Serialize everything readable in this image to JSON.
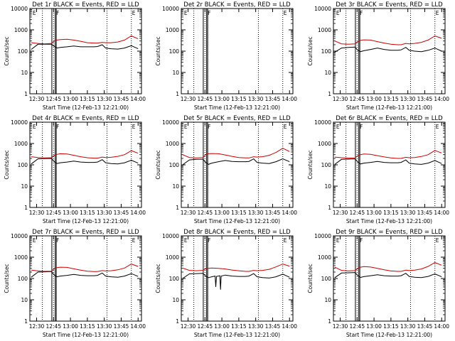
{
  "figure": {
    "background": "#ffffff",
    "event_color": "#000000",
    "lld_color": "#cc0000"
  },
  "chart_data": [
    {
      "type": "line",
      "title": "Det 1r BLACK = Events, RED = LLD",
      "xlabel": "Start Time (12-Feb-13 12:21:00)",
      "ylabel": "Counts/sec",
      "yscale": "log",
      "ylim": [
        1,
        10000
      ],
      "xlim": [
        12.4,
        14.05
      ],
      "x_tick_labels": [
        "12:30",
        "12:45",
        "13:00",
        "13:15",
        "13:30",
        "13:45",
        "14:00"
      ],
      "y_tick_labels": [
        "1",
        "10",
        "100",
        "1000",
        "10000"
      ],
      "flags": [
        "E",
        "F",
        "E"
      ],
      "series": [
        {
          "name": "Events",
          "x": [
            12.42,
            12.52,
            12.62,
            12.72,
            12.76,
            12.8,
            12.85,
            12.95,
            13.05,
            13.15,
            13.25,
            13.35,
            13.4,
            13.47,
            13.52,
            13.6,
            13.7,
            13.8,
            13.9,
            14.0
          ],
          "y": [
            120,
            210,
            210,
            210,
            170,
            140,
            150,
            160,
            175,
            160,
            160,
            160,
            165,
            200,
            140,
            130,
            125,
            140,
            180,
            130
          ]
        },
        {
          "name": "LLD",
          "x": [
            12.42,
            12.52,
            12.62,
            12.72,
            12.76,
            12.8,
            12.85,
            12.95,
            13.05,
            13.15,
            13.25,
            13.35,
            13.4,
            13.47,
            13.52,
            13.6,
            13.7,
            13.8,
            13.9,
            14.0
          ],
          "y": [
            250,
            230,
            220,
            230,
            300,
            330,
            350,
            360,
            330,
            290,
            250,
            240,
            240,
            260,
            250,
            250,
            270,
            330,
            520,
            380
          ]
        }
      ]
    },
    {
      "type": "line",
      "title": "Det 2r BLACK = Events, RED = LLD",
      "xlabel": "Start Time (12-Feb-13 12:21:00)",
      "ylabel": "Counts/sec",
      "yscale": "log",
      "ylim": [
        1,
        10000
      ],
      "xlim": [
        12.4,
        14.05
      ],
      "x_tick_labels": [
        "12:30",
        "12:45",
        "13:00",
        "13:15",
        "13:30",
        "13:45",
        "14:00"
      ],
      "y_tick_labels": [
        "1",
        "10",
        "100",
        "1000",
        "10000"
      ],
      "flags": [
        "E",
        "F",
        "E"
      ],
      "series": []
    },
    {
      "type": "line",
      "title": "Det 3r BLACK = Events, RED = LLD",
      "xlabel": "Start Time (12-Feb-13 12:21:00)",
      "ylabel": "Counts/sec",
      "yscale": "log",
      "ylim": [
        1,
        10000
      ],
      "xlim": [
        12.4,
        14.05
      ],
      "x_tick_labels": [
        "12:30",
        "12:45",
        "13:00",
        "13:15",
        "13:30",
        "13:45",
        "14:00"
      ],
      "y_tick_labels": [
        "1",
        "10",
        "100",
        "1000",
        "10000"
      ],
      "flags": [
        "E",
        "F",
        "E"
      ],
      "series": [
        {
          "name": "Events",
          "x": [
            12.42,
            12.52,
            12.62,
            12.72,
            12.76,
            12.8,
            12.85,
            12.95,
            13.05,
            13.15,
            13.25,
            13.35,
            13.4,
            13.47,
            13.52,
            13.6,
            13.7,
            13.8,
            13.9,
            14.0
          ],
          "y": [
            90,
            140,
            150,
            155,
            110,
            95,
            105,
            120,
            140,
            120,
            110,
            110,
            115,
            150,
            110,
            100,
            95,
            110,
            140,
            100
          ]
        },
        {
          "name": "LLD",
          "x": [
            12.42,
            12.52,
            12.62,
            12.72,
            12.76,
            12.8,
            12.85,
            12.95,
            13.05,
            13.15,
            13.25,
            13.35,
            13.4,
            13.47,
            13.52,
            13.6,
            13.7,
            13.8,
            13.9,
            14.0
          ],
          "y": [
            300,
            220,
            210,
            220,
            280,
            320,
            340,
            330,
            280,
            240,
            210,
            200,
            200,
            230,
            220,
            230,
            260,
            330,
            520,
            400
          ]
        }
      ]
    },
    {
      "type": "line",
      "title": "Det 4r BLACK = Events, RED = LLD",
      "xlabel": "Start Time (12-Feb-13 12:21:00)",
      "ylabel": "Counts/sec",
      "yscale": "log",
      "ylim": [
        1,
        10000
      ],
      "xlim": [
        12.4,
        14.05
      ],
      "x_tick_labels": [
        "12:30",
        "12:45",
        "13:00",
        "13:15",
        "13:30",
        "13:45",
        "14:00"
      ],
      "y_tick_labels": [
        "1",
        "10",
        "100",
        "1000",
        "10000"
      ],
      "flags": [
        "E",
        "F",
        "E"
      ],
      "series": [
        {
          "name": "Events",
          "x": [
            12.42,
            12.52,
            12.62,
            12.72,
            12.76,
            12.8,
            12.85,
            12.95,
            13.05,
            13.15,
            13.25,
            13.35,
            13.4,
            13.47,
            13.52,
            13.6,
            13.7,
            13.8,
            13.9,
            14.0
          ],
          "y": [
            110,
            190,
            195,
            200,
            140,
            115,
            125,
            135,
            150,
            135,
            130,
            130,
            135,
            175,
            125,
            115,
            110,
            125,
            165,
            120
          ]
        },
        {
          "name": "LLD",
          "x": [
            12.42,
            12.52,
            12.62,
            12.72,
            12.76,
            12.8,
            12.85,
            12.95,
            13.05,
            13.15,
            13.25,
            13.35,
            13.4,
            13.47,
            13.52,
            13.6,
            13.7,
            13.8,
            13.9,
            14.0
          ],
          "y": [
            240,
            220,
            210,
            215,
            280,
            310,
            330,
            320,
            280,
            240,
            215,
            205,
            205,
            230,
            220,
            225,
            250,
            300,
            460,
            350
          ]
        }
      ]
    },
    {
      "type": "line",
      "title": "Det 5r BLACK = Events, RED = LLD",
      "xlabel": "Start Time (12-Feb-13 12:21:00)",
      "ylabel": "Counts/sec",
      "yscale": "log",
      "ylim": [
        1,
        10000
      ],
      "xlim": [
        12.4,
        14.05
      ],
      "x_tick_labels": [
        "12:30",
        "12:45",
        "13:00",
        "13:15",
        "13:30",
        "13:45",
        "14:00"
      ],
      "y_tick_labels": [
        "1",
        "10",
        "100",
        "1000",
        "10000"
      ],
      "flags": [
        "E",
        "F",
        "E"
      ],
      "series": [
        {
          "name": "Events",
          "x": [
            12.42,
            12.52,
            12.62,
            12.72,
            12.76,
            12.8,
            12.85,
            12.95,
            13.05,
            13.15,
            13.25,
            13.35,
            13.4,
            13.47,
            13.52,
            13.6,
            13.7,
            13.8,
            13.9,
            14.0
          ],
          "y": [
            100,
            170,
            180,
            185,
            130,
            105,
            120,
            140,
            160,
            145,
            140,
            140,
            145,
            190,
            130,
            120,
            115,
            140,
            190,
            140
          ]
        },
        {
          "name": "LLD",
          "x": [
            12.42,
            12.52,
            12.62,
            12.72,
            12.76,
            12.8,
            12.85,
            12.95,
            13.05,
            13.15,
            13.25,
            13.35,
            13.4,
            13.47,
            13.52,
            13.6,
            13.7,
            13.8,
            13.9,
            14.0
          ],
          "y": [
            300,
            220,
            210,
            220,
            300,
            330,
            340,
            330,
            290,
            250,
            220,
            210,
            210,
            240,
            230,
            240,
            280,
            380,
            600,
            420
          ]
        }
      ]
    },
    {
      "type": "line",
      "title": "Det 6r BLACK = Events, RED = LLD",
      "xlabel": "Start Time (12-Feb-13 12:21:00)",
      "ylabel": "Counts/sec",
      "yscale": "log",
      "ylim": [
        1,
        10000
      ],
      "xlim": [
        12.4,
        14.05
      ],
      "x_tick_labels": [
        "12:30",
        "12:45",
        "13:00",
        "13:15",
        "13:30",
        "13:45",
        "14:00"
      ],
      "y_tick_labels": [
        "1",
        "10",
        "100",
        "1000",
        "10000"
      ],
      "flags": [
        "E",
        "F",
        "E"
      ],
      "series": [
        {
          "name": "Events",
          "x": [
            12.42,
            12.52,
            12.62,
            12.72,
            12.76,
            12.8,
            12.85,
            12.95,
            13.05,
            13.15,
            13.25,
            13.35,
            13.4,
            13.47,
            13.52,
            13.6,
            13.7,
            13.8,
            13.9,
            14.0
          ],
          "y": [
            105,
            180,
            185,
            190,
            135,
            110,
            120,
            130,
            145,
            130,
            125,
            125,
            130,
            170,
            120,
            110,
            105,
            120,
            160,
            115
          ]
        },
        {
          "name": "LLD",
          "x": [
            12.42,
            12.52,
            12.62,
            12.72,
            12.76,
            12.8,
            12.85,
            12.95,
            13.05,
            13.15,
            13.25,
            13.35,
            13.4,
            13.47,
            13.52,
            13.6,
            13.7,
            13.8,
            13.9,
            14.0
          ],
          "y": [
            230,
            215,
            205,
            210,
            270,
            300,
            320,
            310,
            270,
            235,
            210,
            200,
            200,
            225,
            215,
            220,
            245,
            300,
            470,
            360
          ]
        }
      ]
    },
    {
      "type": "line",
      "title": "Det 7r BLACK = Events, RED = LLD",
      "xlabel": "Start Time (12-Feb-13 12:21:00)",
      "ylabel": "Counts/sec",
      "yscale": "log",
      "ylim": [
        1,
        10000
      ],
      "xlim": [
        12.4,
        14.05
      ],
      "x_tick_labels": [
        "12:30",
        "12:45",
        "13:00",
        "13:15",
        "13:30",
        "13:45",
        "14:00"
      ],
      "y_tick_labels": [
        "1",
        "10",
        "100",
        "1000",
        "10000"
      ],
      "flags": [
        "E",
        "F",
        "E"
      ],
      "series": [
        {
          "name": "Events",
          "x": [
            12.42,
            12.52,
            12.62,
            12.72,
            12.76,
            12.8,
            12.85,
            12.95,
            13.05,
            13.15,
            13.25,
            13.35,
            13.4,
            13.47,
            13.52,
            13.6,
            13.7,
            13.8,
            13.9,
            14.0
          ],
          "y": [
            115,
            200,
            205,
            210,
            145,
            120,
            130,
            140,
            155,
            140,
            135,
            135,
            140,
            180,
            130,
            120,
            115,
            130,
            170,
            125
          ]
        },
        {
          "name": "LLD",
          "x": [
            12.42,
            12.52,
            12.62,
            12.72,
            12.76,
            12.8,
            12.85,
            12.95,
            13.05,
            13.15,
            13.25,
            13.35,
            13.4,
            13.47,
            13.52,
            13.6,
            13.7,
            13.8,
            13.9,
            14.0
          ],
          "y": [
            250,
            225,
            215,
            220,
            290,
            320,
            340,
            330,
            285,
            245,
            220,
            210,
            210,
            235,
            225,
            230,
            255,
            310,
            480,
            370
          ]
        }
      ]
    },
    {
      "type": "line",
      "title": "Det 8r BLACK = Events, RED = LLD",
      "xlabel": "Start Time (12-Feb-13 12:21:00)",
      "ylabel": "Counts/sec",
      "yscale": "log",
      "ylim": [
        1,
        10000
      ],
      "xlim": [
        12.4,
        14.05
      ],
      "x_tick_labels": [
        "12:30",
        "12:45",
        "13:00",
        "13:15",
        "13:30",
        "13:45",
        "14:00"
      ],
      "y_tick_labels": [
        "1",
        "10",
        "100",
        "1000",
        "10000"
      ],
      "flags": [
        "E",
        "F",
        "E"
      ],
      "series": [
        {
          "name": "Events",
          "x": [
            12.42,
            12.52,
            12.62,
            12.72,
            12.76,
            12.8,
            12.85,
            12.9,
            12.91,
            12.92,
            12.97,
            12.98,
            12.99,
            13.05,
            13.15,
            13.25,
            13.35,
            13.4,
            13.47,
            13.52,
            13.6,
            13.7,
            13.8,
            13.9,
            14.0
          ],
          "y": [
            100,
            165,
            170,
            175,
            130,
            110,
            120,
            130,
            40,
            125,
            135,
            30,
            130,
            145,
            130,
            125,
            125,
            130,
            170,
            120,
            110,
            105,
            120,
            160,
            115
          ]
        },
        {
          "name": "LLD",
          "x": [
            12.42,
            12.52,
            12.62,
            12.72,
            12.76,
            12.8,
            12.85,
            12.95,
            13.05,
            13.15,
            13.25,
            13.35,
            13.4,
            13.47,
            13.52,
            13.6,
            13.7,
            13.8,
            13.9,
            14.0
          ],
          "y": [
            310,
            240,
            230,
            240,
            290,
            300,
            310,
            300,
            280,
            250,
            230,
            215,
            215,
            240,
            230,
            240,
            270,
            350,
            480,
            380
          ]
        }
      ]
    },
    {
      "type": "line",
      "title": "Det 9r BLACK = Events, RED = LLD",
      "xlabel": "Start Time (12-Feb-13 12:21:00)",
      "ylabel": "Counts/sec",
      "yscale": "log",
      "ylim": [
        1,
        10000
      ],
      "xlim": [
        12.4,
        14.05
      ],
      "x_tick_labels": [
        "12:30",
        "12:45",
        "13:00",
        "13:15",
        "13:30",
        "13:45",
        "14:00"
      ],
      "y_tick_labels": [
        "1",
        "10",
        "100",
        "1000",
        "10000"
      ],
      "flags": [
        "E",
        "F",
        "E"
      ],
      "series": [
        {
          "name": "Events",
          "x": [
            12.42,
            12.52,
            12.62,
            12.72,
            12.76,
            12.8,
            12.85,
            12.95,
            13.05,
            13.15,
            13.25,
            13.35,
            13.4,
            13.47,
            13.52,
            13.6,
            13.7,
            13.8,
            13.9,
            14.0
          ],
          "y": [
            110,
            180,
            185,
            190,
            135,
            112,
            122,
            135,
            150,
            135,
            130,
            130,
            135,
            175,
            125,
            115,
            110,
            125,
            165,
            120
          ]
        },
        {
          "name": "LLD",
          "x": [
            12.42,
            12.52,
            12.62,
            12.72,
            12.76,
            12.8,
            12.85,
            12.95,
            13.05,
            13.15,
            13.25,
            13.35,
            13.4,
            13.47,
            13.52,
            13.6,
            13.7,
            13.8,
            13.9,
            14.0
          ],
          "y": [
            340,
            240,
            225,
            235,
            300,
            340,
            360,
            345,
            300,
            255,
            225,
            215,
            215,
            245,
            235,
            245,
            280,
            370,
            560,
            420
          ]
        }
      ]
    }
  ]
}
